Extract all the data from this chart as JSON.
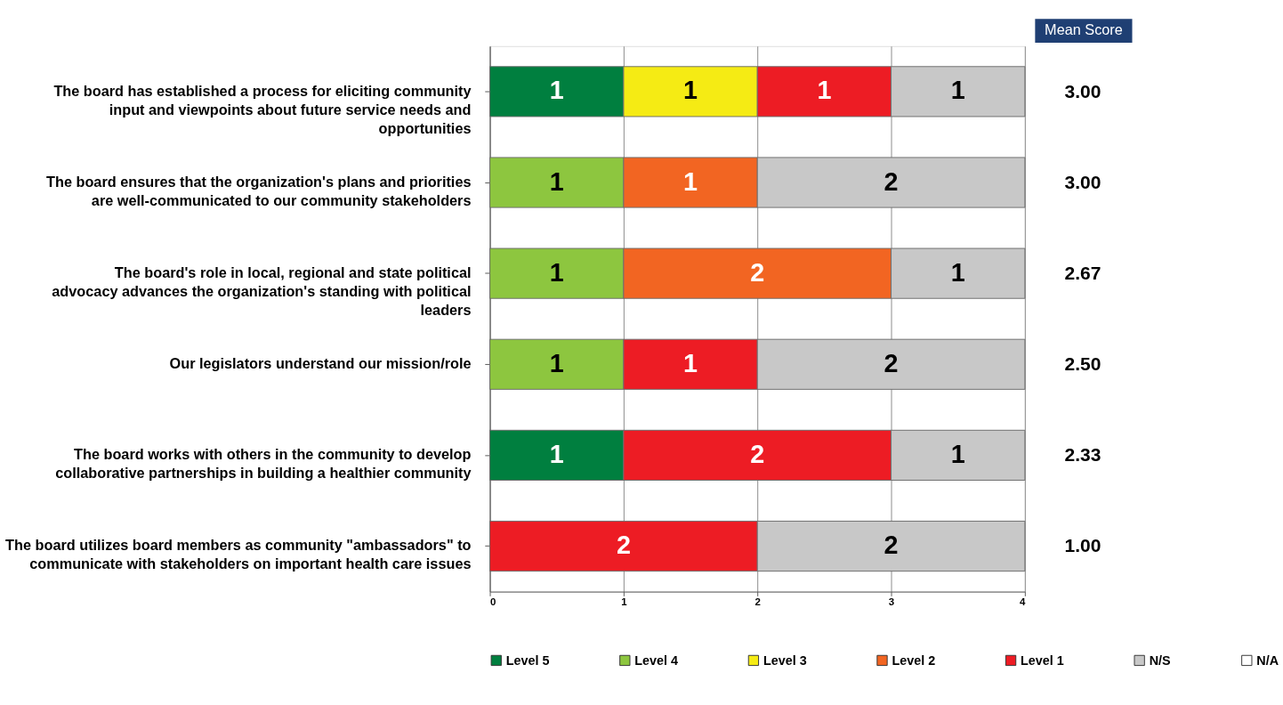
{
  "chart_data": {
    "type": "bar",
    "orientation": "horizontal",
    "stacked": true,
    "data_labels": true,
    "grid": "x",
    "legend": "bottom",
    "categories": [
      "The board has established a process for eliciting community input and viewpoints about future service needs and opportunities",
      "The board ensures that the organization's plans and priorities are well-communicated to our community stakeholders",
      "The board's role in local, regional and state political advocacy advances the organization's standing with political leaders",
      "Our legislators understand our mission/role",
      "The board works with others in the community to develop collaborative partnerships in building a healthier community",
      "The board utilizes board members as community \"ambassadors\" to communicate with stakeholders on important health care issues"
    ],
    "series": [
      {
        "name": "Level 5",
        "color": "#007f3f",
        "values": [
          1,
          null,
          null,
          null,
          1,
          null
        ]
      },
      {
        "name": "Level 4",
        "color": "#8dc63f",
        "values": [
          null,
          1,
          1,
          1,
          null,
          null
        ]
      },
      {
        "name": "Level 3",
        "color": "#f5eb14",
        "values": [
          1,
          null,
          null,
          null,
          null,
          null
        ]
      },
      {
        "name": "Level 2",
        "color": "#f26522",
        "values": [
          null,
          1,
          2,
          null,
          null,
          null
        ]
      },
      {
        "name": "Level 1",
        "color": "#ed1c24",
        "values": [
          1,
          null,
          null,
          1,
          2,
          2
        ]
      },
      {
        "name": "N/S",
        "color": "#c8c8c8",
        "values": [
          1,
          2,
          1,
          2,
          1,
          2
        ]
      },
      {
        "name": "N/A",
        "color": "#ffffff",
        "values": [
          null,
          null,
          null,
          null,
          null,
          null
        ]
      }
    ],
    "xlim": [
      0,
      4
    ],
    "xticks": [
      0,
      1,
      2,
      3,
      4
    ],
    "annotations": [
      "Mean Score",
      "3.00",
      "3.00",
      "2.67",
      "2.50",
      "2.33",
      "1.00"
    ]
  }
}
